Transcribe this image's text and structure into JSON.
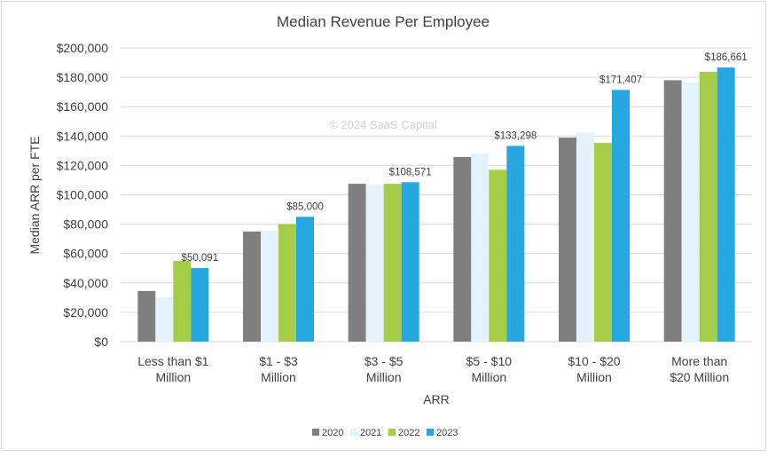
{
  "chart_data": {
    "type": "bar",
    "title": "Median Revenue Per Employee",
    "xlabel": "ARR",
    "ylabel": "Median ARR per FTE",
    "watermark": "© 2024 SaaS Capital",
    "ylim": [
      0,
      200000
    ],
    "yticks": [
      "$0",
      "$20,000",
      "$40,000",
      "$60,000",
      "$80,000",
      "$100,000",
      "$120,000",
      "$140,000",
      "$160,000",
      "$180,000",
      "$200,000"
    ],
    "grid": true,
    "legend": "bottom",
    "categories": [
      [
        "Less than $1",
        "Million"
      ],
      [
        "$1 - $3",
        "Million"
      ],
      [
        "$3 - $5",
        "Million"
      ],
      [
        "$5 - $10",
        "Million"
      ],
      [
        "$10 - $20",
        "Million"
      ],
      [
        "More than",
        "$20 Million"
      ]
    ],
    "series": [
      {
        "name": "2020",
        "color": "#7f7f7f",
        "values": [
          34500,
          75000,
          107500,
          125700,
          139000,
          178000
        ]
      },
      {
        "name": "2021",
        "color": "#e4f2fb",
        "values": [
          30200,
          75500,
          107000,
          128000,
          142600,
          176400
        ]
      },
      {
        "name": "2022",
        "color": "#a5cc46",
        "values": [
          55000,
          80000,
          107500,
          117000,
          135300,
          183700
        ]
      },
      {
        "name": "2023",
        "color": "#27a7df",
        "values": [
          50091,
          85000,
          108571,
          133298,
          171407,
          186661
        ],
        "data_labels": [
          "$50,091",
          "$85,000",
          "$108,571",
          "$133,298",
          "$171,407",
          "$186,661"
        ]
      }
    ]
  }
}
